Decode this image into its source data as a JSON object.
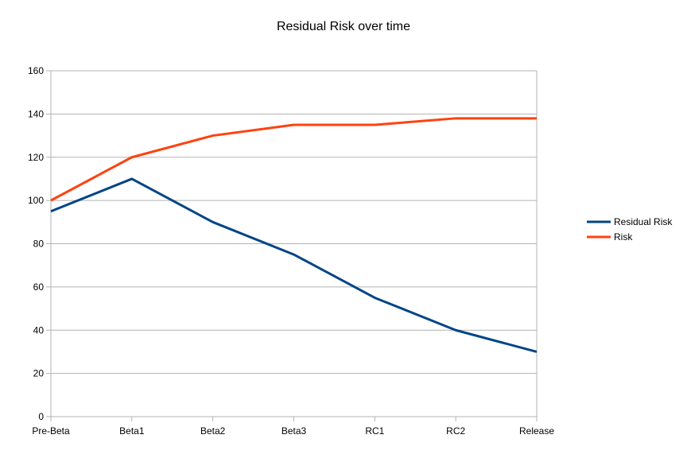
{
  "chart_data": {
    "type": "line",
    "title": "Residual Risk over time",
    "xlabel": "",
    "ylabel": "",
    "categories": [
      "Pre-Beta",
      "Beta1",
      "Beta2",
      "Beta3",
      "RC1",
      "RC2",
      "Release"
    ],
    "ylim": [
      0,
      160
    ],
    "yticks": [
      0,
      20,
      40,
      60,
      80,
      100,
      120,
      140,
      160
    ],
    "grid": true,
    "legend_position": "right",
    "series": [
      {
        "name": "Residual Risk",
        "color": "#004586",
        "values": [
          95,
          110,
          90,
          75,
          55,
          40,
          30
        ]
      },
      {
        "name": "Risk",
        "color": "#ff420e",
        "values": [
          100,
          120,
          130,
          135,
          135,
          138,
          138
        ]
      }
    ]
  }
}
